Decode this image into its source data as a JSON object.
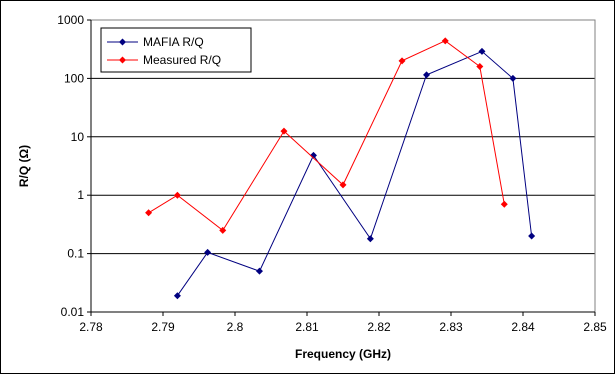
{
  "chart_data": {
    "type": "line",
    "title": "",
    "xlabel": "Frequency (GHz)",
    "ylabel": "R/Q (Ω)",
    "xlim": [
      2.78,
      2.85
    ],
    "ylim": [
      0.01,
      1000
    ],
    "yscale": "log",
    "x_ticks": [
      "2.78",
      "2.79",
      "2.8",
      "2.81",
      "2.82",
      "2.83",
      "2.84",
      "2.85"
    ],
    "y_ticks": [
      "0.01",
      "0.1",
      "1",
      "10",
      "100",
      "1000"
    ],
    "grid": "horizontal",
    "legend": "top-left",
    "series": [
      {
        "name": "MAFIA R/Q",
        "color": "#000080",
        "marker": "diamond",
        "x": [
          2.792,
          2.7962,
          2.8034,
          2.8109,
          2.8188,
          2.8266,
          2.8343,
          2.8386,
          2.8412
        ],
        "y": [
          0.019,
          0.105,
          0.05,
          4.8,
          0.18,
          115,
          290,
          100,
          0.2
        ]
      },
      {
        "name": "Measured R/Q",
        "color": "#ff0000",
        "marker": "diamond",
        "x": [
          2.788,
          2.792,
          2.7983,
          2.8068,
          2.815,
          2.8232,
          2.8292,
          2.834,
          2.8374
        ],
        "y": [
          0.5,
          1.0,
          0.25,
          12.5,
          1.5,
          200,
          440,
          160,
          0.7
        ]
      }
    ]
  }
}
